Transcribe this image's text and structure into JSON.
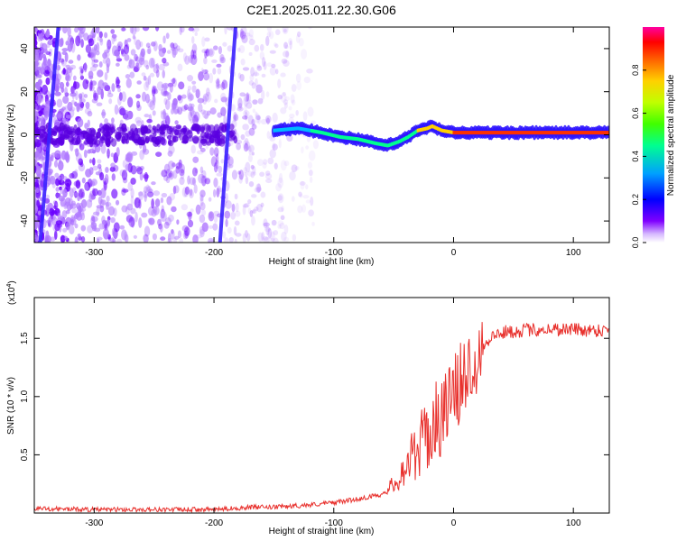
{
  "title": "C2E1.2025.011.22.30.G06",
  "chart_data": [
    {
      "type": "heatmap",
      "title": "C2E1.2025.011.22.30.G06",
      "xlabel": "Height of straight line (km)",
      "ylabel": "Frequency (Hz)",
      "xlim": [
        -350,
        130
      ],
      "ylim": [
        -50,
        50
      ],
      "x_ticks": [
        -300,
        -200,
        -100,
        0,
        100
      ],
      "y_ticks": [
        -40,
        -20,
        0,
        20,
        40
      ],
      "colorbar": {
        "label": "Normalized spectral amplitude",
        "range": [
          0,
          1
        ],
        "ticks": [
          0.0,
          0.2,
          0.4,
          0.6,
          0.8
        ],
        "colors": [
          "#ffffff",
          "#7f00ff",
          "#0000ff",
          "#00b0ff",
          "#00ff80",
          "#80ff00",
          "#ffd000",
          "#ff6000",
          "#ff0000",
          "#ff00a0"
        ]
      },
      "signal_trace": {
        "x": [
          -150,
          -130,
          -110,
          -95,
          -80,
          -65,
          -55,
          -45,
          -38,
          -30,
          -22,
          -18,
          -10,
          0,
          30,
          60,
          90,
          130
        ],
        "y": [
          2,
          3,
          1,
          -1,
          -2,
          -4,
          -5,
          -3,
          -1,
          2,
          3,
          4,
          2,
          1,
          1,
          1,
          1,
          1
        ]
      },
      "streaks": [
        {
          "x_start": -345,
          "x_end": -330,
          "y_start": -50,
          "y_end": 50
        },
        {
          "x_start": -195,
          "x_end": -182,
          "y_start": -50,
          "y_end": 50
        }
      ]
    },
    {
      "type": "line",
      "xlabel": "Height of straight line (km)",
      "ylabel": "SNR (10 * v/v)",
      "scale_label": "(x10",
      "scale_exp": "4",
      "xlim": [
        -350,
        130
      ],
      "ylim": [
        0,
        1.85
      ],
      "x_ticks": [
        -300,
        -200,
        -100,
        0,
        100
      ],
      "y_ticks": [
        0.5,
        1.0,
        1.5
      ],
      "series": [
        {
          "color": "#e8302c",
          "x": [
            -350,
            -300,
            -250,
            -200,
            -170,
            -150,
            -120,
            -100,
            -80,
            -60,
            -50,
            -40,
            -30,
            -20,
            -10,
            0,
            10,
            20,
            30,
            40,
            60,
            80,
            100,
            110,
            130
          ],
          "y": [
            0.04,
            0.03,
            0.03,
            0.03,
            0.05,
            0.05,
            0.07,
            0.09,
            0.12,
            0.16,
            0.25,
            0.4,
            0.55,
            0.7,
            0.85,
            1.0,
            1.2,
            1.38,
            1.5,
            1.55,
            1.57,
            1.58,
            1.58,
            1.57,
            1.57
          ]
        }
      ]
    }
  ]
}
